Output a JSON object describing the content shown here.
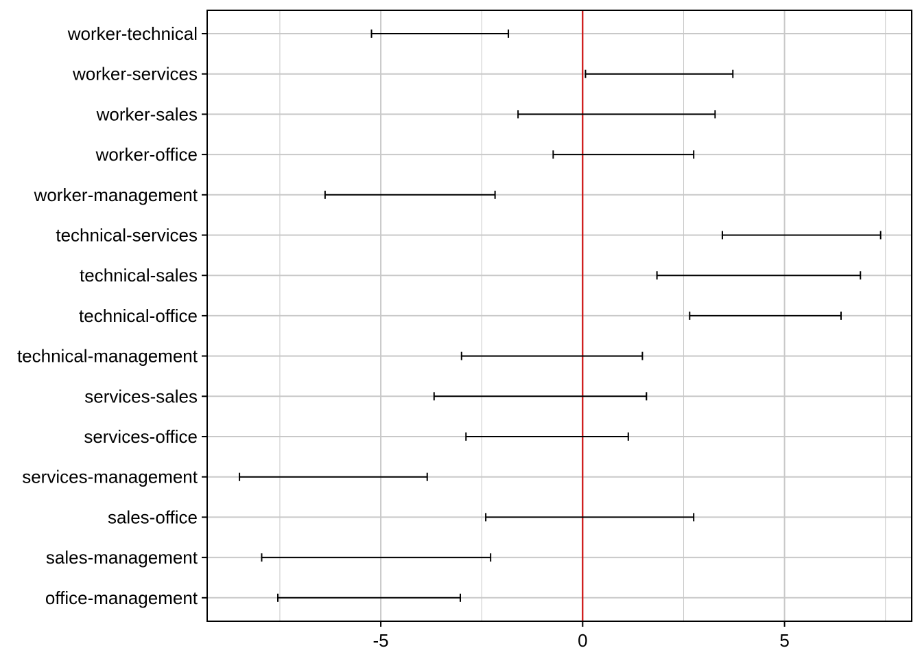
{
  "chart_data": {
    "type": "errorbar",
    "orientation": "horizontal",
    "title": "",
    "xlabel": "",
    "ylabel": "",
    "xlim": [
      -9.3,
      8.15
    ],
    "x_ticks": [
      -5,
      0,
      5
    ],
    "x_tick_labels": [
      "-5",
      "0",
      "5"
    ],
    "grid": true,
    "reference_line": {
      "x": 0,
      "color": "#cc0000"
    },
    "categories": [
      "worker-technical",
      "worker-services",
      "worker-sales",
      "worker-office",
      "worker-management",
      "technical-services",
      "technical-sales",
      "technical-office",
      "technical-management",
      "services-sales",
      "services-office",
      "services-management",
      "sales-office",
      "sales-management",
      "office-management"
    ],
    "intervals": [
      {
        "lower": -5.23,
        "upper": -1.84
      },
      {
        "lower": 0.07,
        "upper": 3.72
      },
      {
        "lower": -1.6,
        "upper": 3.28
      },
      {
        "lower": -0.73,
        "upper": 2.75
      },
      {
        "lower": -6.38,
        "upper": -2.17
      },
      {
        "lower": 3.46,
        "upper": 7.38
      },
      {
        "lower": 1.84,
        "upper": 6.88
      },
      {
        "lower": 2.65,
        "upper": 6.4
      },
      {
        "lower": -3.0,
        "upper": 1.48
      },
      {
        "lower": -3.68,
        "upper": 1.58
      },
      {
        "lower": -2.89,
        "upper": 1.13
      },
      {
        "lower": -8.5,
        "upper": -3.85
      },
      {
        "lower": -2.4,
        "upper": 2.75
      },
      {
        "lower": -7.95,
        "upper": -2.28
      },
      {
        "lower": -7.55,
        "upper": -3.03
      }
    ],
    "colors": {
      "interval": "#000000",
      "reference": "#cc0000",
      "grid": "#c8c8c8",
      "frame": "#000000"
    }
  }
}
